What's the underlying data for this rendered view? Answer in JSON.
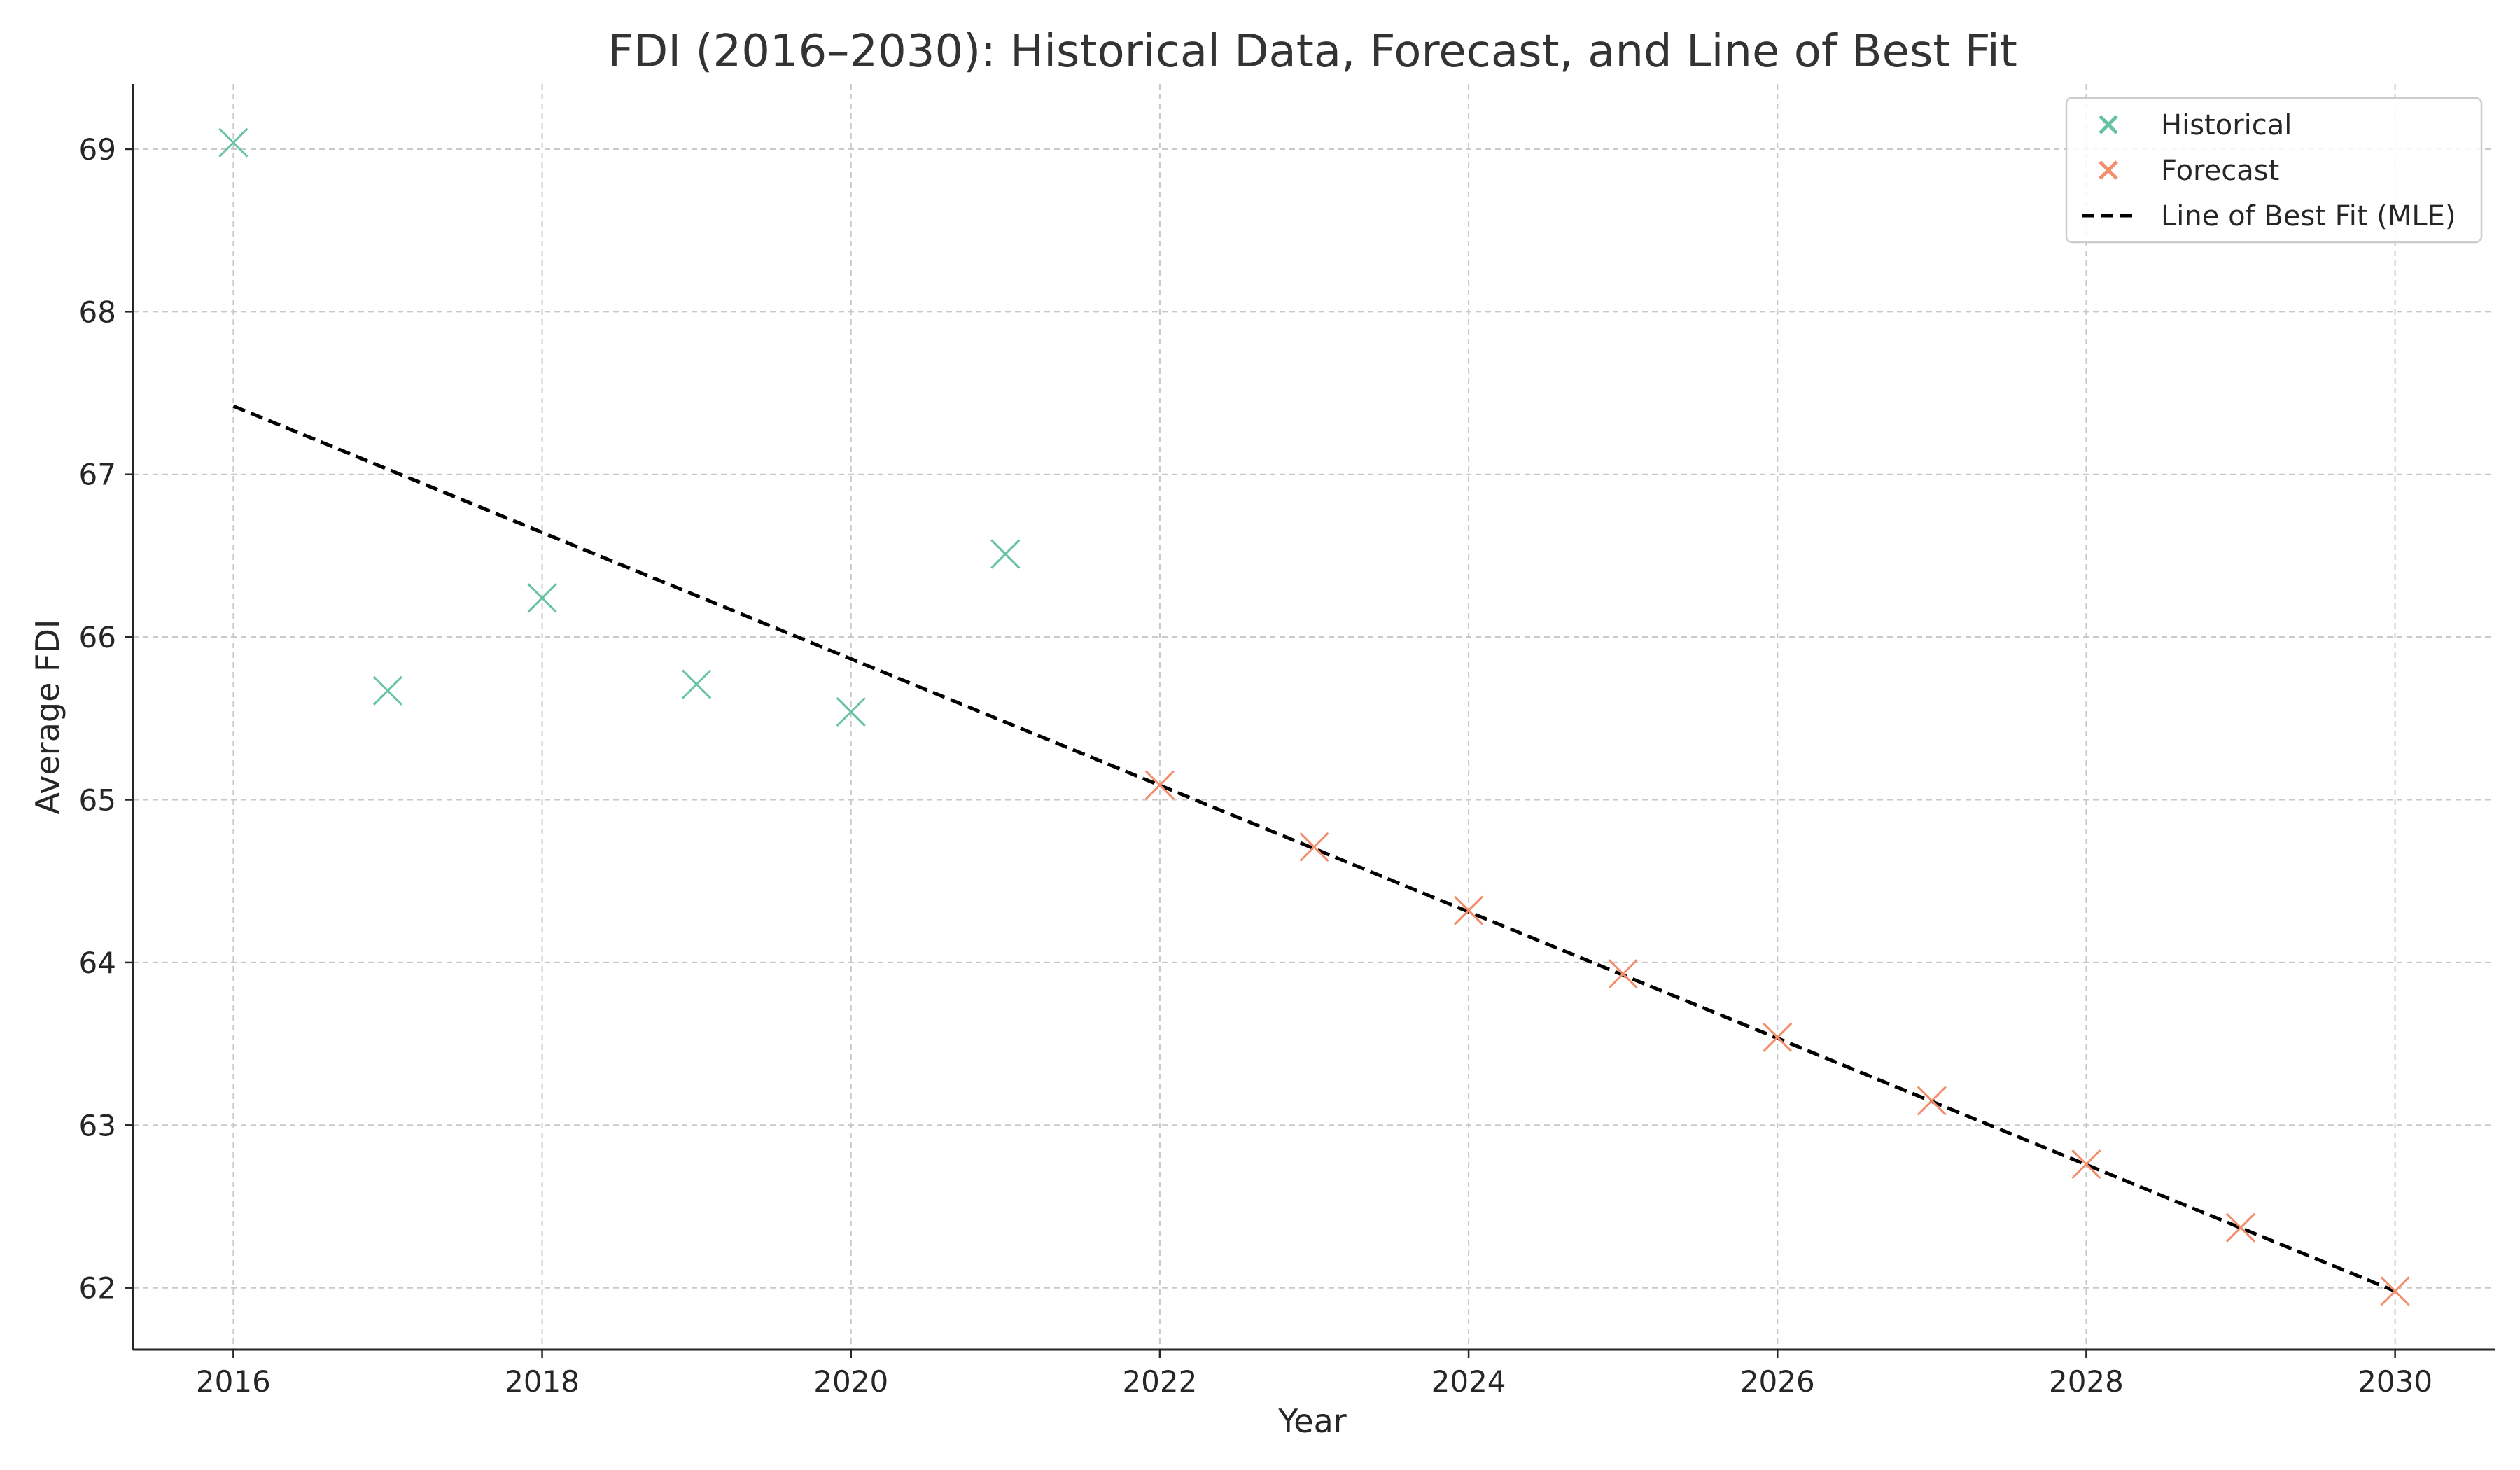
{
  "chart_data": {
    "type": "scatter",
    "title": "FDI (2016–2030): Historical Data, Forecast, and Line of Best Fit",
    "xlabel": "Year",
    "ylabel": "Average FDI",
    "xlim": [
      2015.35,
      2030.65
    ],
    "ylim": [
      61.62,
      69.4
    ],
    "x_ticks": [
      "2016",
      "2018",
      "2020",
      "2022",
      "2024",
      "2026",
      "2028",
      "2030"
    ],
    "y_ticks": [
      "62",
      "63",
      "64",
      "65",
      "66",
      "67",
      "68",
      "69"
    ],
    "grid": true,
    "legend_position": "top-right",
    "series": [
      {
        "name": "Historical",
        "kind": "scatter",
        "marker": "x",
        "color": "#66c2a5",
        "x": [
          2016,
          2017,
          2018,
          2019,
          2020,
          2021
        ],
        "y": [
          69.04,
          65.67,
          66.24,
          65.71,
          65.54,
          66.51
        ]
      },
      {
        "name": "Forecast",
        "kind": "scatter",
        "marker": "x",
        "color": "#f28e6b",
        "x": [
          2022,
          2023,
          2024,
          2025,
          2026,
          2027,
          2028,
          2029,
          2030
        ],
        "y": [
          65.09,
          64.71,
          64.32,
          63.93,
          63.54,
          63.15,
          62.76,
          62.37,
          61.98
        ]
      },
      {
        "name": "Line of Best Fit (MLE)",
        "kind": "line",
        "style": "dashed",
        "color": "#000000",
        "x": [
          2016,
          2030
        ],
        "y": [
          67.42,
          61.98
        ]
      }
    ]
  }
}
